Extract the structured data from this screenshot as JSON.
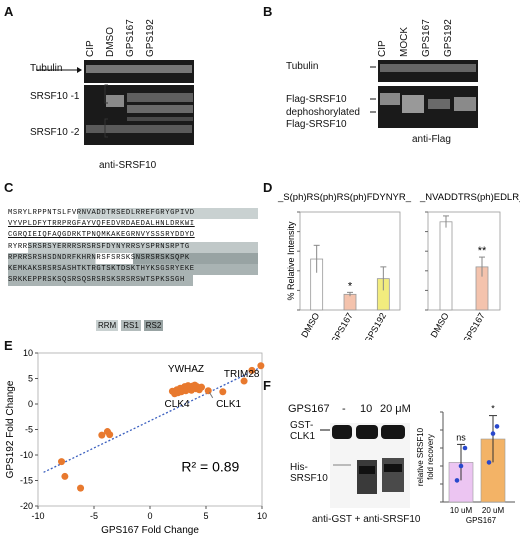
{
  "panels": {
    "A": {
      "letter": "A",
      "lanes": [
        "CIP",
        "DMSO",
        "GPS167",
        "GPS192"
      ],
      "row_labels": [
        "Tubulin",
        "SRSF10 -1",
        "SRSF10 -2"
      ],
      "footer": "anti-SRSF10"
    },
    "B": {
      "letter": "B",
      "lanes": [
        "CIP",
        "MOCK",
        "GPS167",
        "GPS192"
      ],
      "row_labels": [
        "Tubulin",
        "Flag-SRSF10",
        "dephoshorylated\nFlag-SRSF10"
      ],
      "footer": "anti-Flag"
    },
    "C": {
      "letter": "C",
      "sequence": [
        "MSRYLRPPNTSLFVRNVADDTRSEDLRREFGRYGPIVD",
        "VYVPLDFYTRRPRGFAYVQFEDVRDAEDALHNLDRKWI",
        "CGRQIEIQFAQGDRKTPNQMKAKEGRNVYSSSRYDDYD",
        "RYRRSRSRSYERRRSRSRSFDYNYRRSYSPRNSRPTG",
        "RPRRSRSHSDNDRFKHRNRSFSRSKSNSRSRSKSQPK",
        "KEMKAKSRSRSASHTKTRGTSKTDSKTHYKSGSRYEKE",
        "SRKKEPPRSKSQSRSQSRSRSKSRSRSWTSPKSSGH"
      ],
      "legend": [
        "RRM",
        "RS1",
        "RS2"
      ],
      "legend_colors": [
        "#c9d1d1",
        "#b3bcbc",
        "#98a3a3"
      ]
    },
    "D": {
      "letter": "D"
    },
    "E": {
      "letter": "E",
      "r2": "R² = 0.89",
      "callouts": [
        "YWHAZ",
        "TRIM28",
        "CLK4",
        "CLK1"
      ]
    },
    "F": {
      "letter": "F",
      "treatment_label": "GPS167",
      "doses": [
        "-",
        "10",
        "20 μM"
      ],
      "band_labels": [
        "GST-\nCLK1",
        "His-\nSRSF10"
      ],
      "footer": "anti-GST + anti-SRSF10"
    }
  },
  "chart_data": [
    {
      "id": "D-left",
      "type": "bar",
      "title": "_S(ph)RS(ph)RS(ph)FDYNYR_",
      "ylabel": "% Relative Intensity",
      "categories": [
        "DMSO",
        "GPS167",
        "GPS192"
      ],
      "values": [
        1.3,
        0.4,
        0.8
      ],
      "errors": [
        0.35,
        0.05,
        0.3
      ],
      "colors": [
        "#ffffff",
        "#f4c3ad",
        "#f2ec7e"
      ],
      "annotations": [
        "",
        "*",
        ""
      ],
      "ylim": [
        0,
        2.5
      ]
    },
    {
      "id": "D-right",
      "type": "bar",
      "title": "_NVADDTRS(ph)EDLR_",
      "categories": [
        "DMSO",
        "GPS167"
      ],
      "values": [
        2.25,
        1.1
      ],
      "errors": [
        0.15,
        0.25
      ],
      "colors": [
        "#ffffff",
        "#f4c3ad"
      ],
      "annotations": [
        "",
        "**"
      ],
      "ylim": [
        0,
        2.5
      ]
    },
    {
      "id": "E",
      "type": "scatter",
      "xlabel": "GPS167 Fold Change",
      "ylabel": "GPS192 Fold Change",
      "xlim": [
        -10,
        10
      ],
      "ylim": [
        -20,
        10
      ],
      "xticks": [
        -10,
        -5,
        0,
        5,
        10
      ],
      "yticks": [
        -20,
        -15,
        -10,
        -5,
        0,
        5,
        10
      ],
      "points": [
        [
          -7.9,
          -11.3
        ],
        [
          -7.6,
          -14.2
        ],
        [
          -6.2,
          -16.5
        ],
        [
          -4.3,
          -6.1
        ],
        [
          -3.8,
          -5.4
        ],
        [
          -3.6,
          -6.0
        ],
        [
          2.0,
          2.5
        ],
        [
          2.2,
          2.0
        ],
        [
          2.4,
          2.8
        ],
        [
          2.5,
          2.2
        ],
        [
          2.7,
          3.1
        ],
        [
          2.8,
          2.4
        ],
        [
          3.0,
          2.7
        ],
        [
          3.1,
          3.4
        ],
        [
          3.2,
          2.6
        ],
        [
          3.3,
          3.0
        ],
        [
          3.4,
          3.6
        ],
        [
          3.5,
          2.9
        ],
        [
          3.6,
          3.3
        ],
        [
          3.7,
          2.7
        ],
        [
          3.8,
          3.5
        ],
        [
          3.9,
          3.1
        ],
        [
          4.0,
          3.7
        ],
        [
          4.1,
          3.0
        ],
        [
          4.2,
          3.4
        ],
        [
          4.4,
          2.8
        ],
        [
          4.6,
          3.3
        ],
        [
          5.2,
          2.6
        ],
        [
          6.5,
          2.4
        ],
        [
          8.4,
          4.5
        ],
        [
          9.1,
          6.6
        ],
        [
          9.9,
          7.5
        ]
      ],
      "fit": {
        "x": [
          -9.5,
          9.7
        ],
        "y": [
          -13.4,
          7.0
        ]
      }
    },
    {
      "id": "F-bar",
      "type": "bar",
      "ylabel": "relative SRSF10\nfold recovery",
      "categories": [
        "10 uM",
        "20 uM"
      ],
      "xlabel": "GPS167",
      "values": [
        2.2,
        3.5
      ],
      "errors": [
        1.0,
        1.3
      ],
      "points": [
        [
          1.2,
          2.0,
          3.0
        ],
        [
          2.2,
          3.8,
          4.2
        ]
      ],
      "colors": [
        "#ecc5f2",
        "#f3b366"
      ],
      "point_color": "#2848cc",
      "annotations": [
        "ns",
        "*"
      ],
      "ylim": [
        0,
        5
      ]
    }
  ]
}
